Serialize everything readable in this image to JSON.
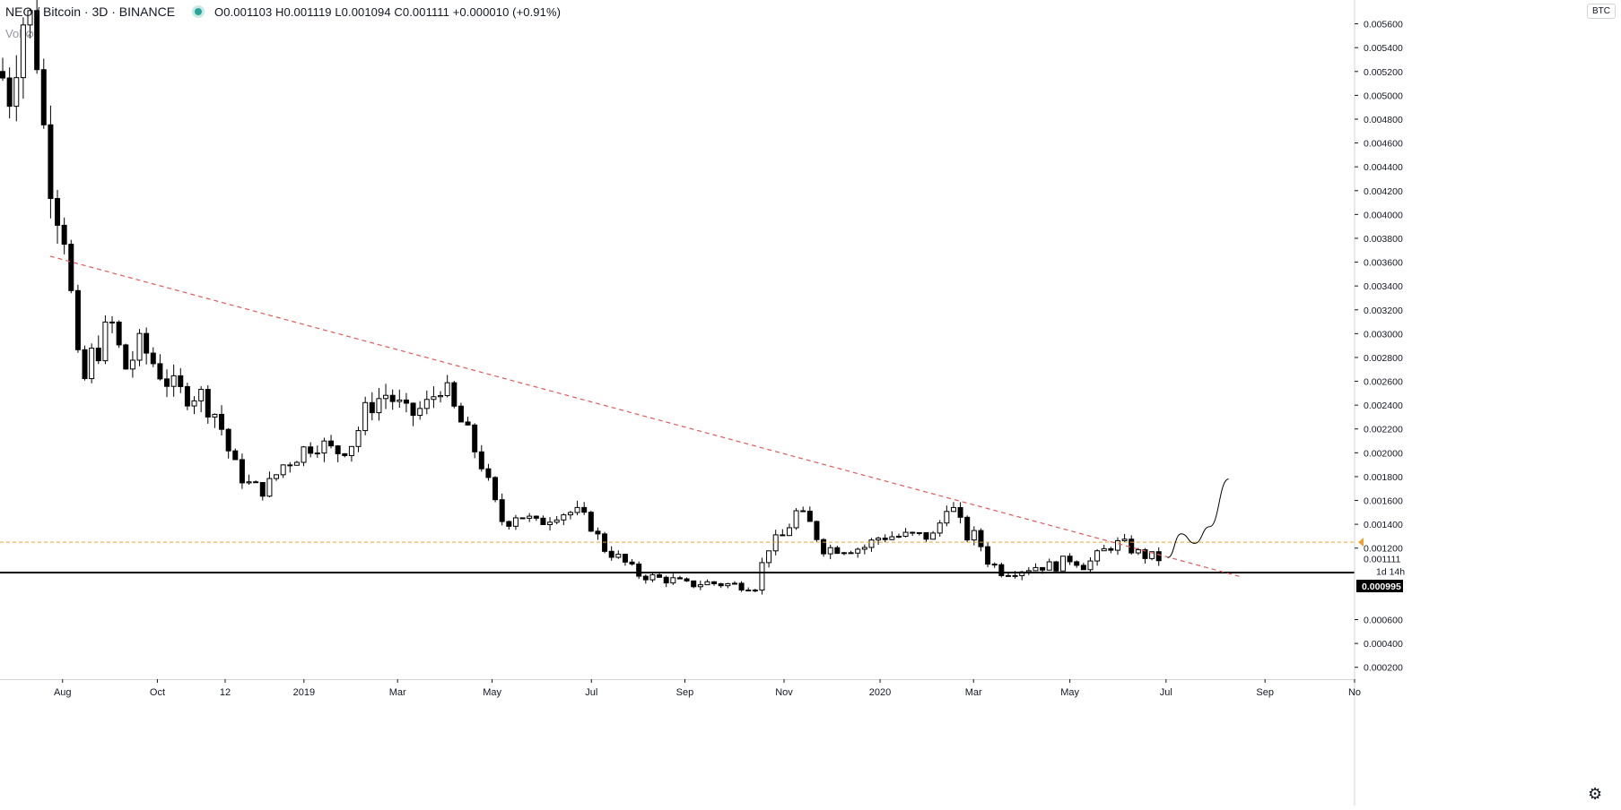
{
  "header": {
    "symbol": "NEO / Bitcoin · 3D · BINANCE",
    "ohlc": "O0.001103 H0.001119 L0.001094 C0.001111 +0.000010 (+0.91%)",
    "volume_label": "Vol"
  },
  "currency": "BTC",
  "colors": {
    "trendline": "#e05a5a",
    "level_orange": "#f0a030",
    "support": "#000000",
    "axis_text": "#131722"
  },
  "chart_data": {
    "type": "candlestick",
    "y_axis": {
      "min": 0.0001,
      "max": 0.0058,
      "ticks": [
        "0.005600",
        "0.005400",
        "0.005200",
        "0.005000",
        "0.004800",
        "0.004600",
        "0.004400",
        "0.004200",
        "0.004000",
        "0.003800",
        "0.003600",
        "0.003400",
        "0.003200",
        "0.003000",
        "0.002800",
        "0.002600",
        "0.002400",
        "0.002200",
        "0.002000",
        "0.001800",
        "0.001600",
        "0.001400",
        "0.001200",
        "0.000600",
        "0.000400",
        "0.000200"
      ],
      "tick_values": [
        0.0056,
        0.0054,
        0.0052,
        0.005,
        0.0048,
        0.0046,
        0.0044,
        0.0042,
        0.004,
        0.0038,
        0.0036,
        0.0034,
        0.0032,
        0.003,
        0.0028,
        0.0026,
        0.0024,
        0.0022,
        0.002,
        0.0018,
        0.0016,
        0.0014,
        0.0012,
        0.0006,
        0.0004,
        0.0002
      ]
    },
    "x_axis": {
      "labels": [
        "Aug",
        "Oct",
        "12",
        "2019",
        "Mar",
        "May",
        "Jul",
        "Sep",
        "Nov",
        "2020",
        "Mar",
        "May",
        "Jul",
        "Sep",
        "No"
      ],
      "positions": [
        0.0462,
        0.1162,
        0.1662,
        0.2244,
        0.2935,
        0.3633,
        0.4366,
        0.5056,
        0.5788,
        0.6497,
        0.7187,
        0.7898,
        0.8608,
        0.9339,
        1.0
      ]
    },
    "price_labels": {
      "last": "0.001111",
      "last_value": 0.001111,
      "countdown": "1d 14h",
      "support": "0.000995",
      "support_value": 0.000995,
      "orange_value": 0.00125
    },
    "trendline": [
      [
        0.037,
        0.00365
      ],
      [
        0.916,
        0.00096
      ]
    ],
    "projection": [
      [
        0.862,
        0.00112
      ],
      [
        0.872,
        0.00132
      ],
      [
        0.882,
        0.00124
      ],
      [
        0.893,
        0.00138
      ],
      [
        0.907,
        0.00178
      ]
    ],
    "anchors": [
      [
        0.0,
        0.0052
      ],
      [
        0.008,
        0.005
      ],
      [
        0.015,
        0.0056
      ],
      [
        0.021,
        0.0057
      ],
      [
        0.028,
        0.0053
      ],
      [
        0.034,
        0.0045
      ],
      [
        0.041,
        0.0041
      ],
      [
        0.049,
        0.0038
      ],
      [
        0.054,
        0.0031
      ],
      [
        0.06,
        0.0025
      ],
      [
        0.067,
        0.0028
      ],
      [
        0.074,
        0.0029
      ],
      [
        0.082,
        0.0031
      ],
      [
        0.092,
        0.0027
      ],
      [
        0.104,
        0.0029
      ],
      [
        0.117,
        0.0027
      ],
      [
        0.131,
        0.0025
      ],
      [
        0.147,
        0.0025
      ],
      [
        0.161,
        0.0023
      ],
      [
        0.172,
        0.0019
      ],
      [
        0.186,
        0.0017
      ],
      [
        0.197,
        0.0017
      ],
      [
        0.209,
        0.0019
      ],
      [
        0.221,
        0.002
      ],
      [
        0.233,
        0.0021
      ],
      [
        0.247,
        0.002
      ],
      [
        0.261,
        0.0021
      ],
      [
        0.272,
        0.0024
      ],
      [
        0.286,
        0.0025
      ],
      [
        0.301,
        0.0023
      ],
      [
        0.316,
        0.0024
      ],
      [
        0.326,
        0.0026
      ],
      [
        0.333,
        0.0024
      ],
      [
        0.343,
        0.0022
      ],
      [
        0.356,
        0.0019
      ],
      [
        0.364,
        0.0016
      ],
      [
        0.372,
        0.0014
      ],
      [
        0.382,
        0.0015
      ],
      [
        0.396,
        0.0014
      ],
      [
        0.411,
        0.0015
      ],
      [
        0.425,
        0.0015
      ],
      [
        0.436,
        0.0014
      ],
      [
        0.446,
        0.0012
      ],
      [
        0.459,
        0.0011
      ],
      [
        0.471,
        0.00098
      ],
      [
        0.484,
        0.00095
      ],
      [
        0.497,
        0.00093
      ],
      [
        0.508,
        0.00089
      ],
      [
        0.52,
        0.00091
      ],
      [
        0.532,
        0.0009
      ],
      [
        0.545,
        0.00089
      ],
      [
        0.558,
        0.00088
      ],
      [
        0.566,
        0.0012
      ],
      [
        0.578,
        0.0013
      ],
      [
        0.588,
        0.0015
      ],
      [
        0.598,
        0.0014
      ],
      [
        0.608,
        0.0012
      ],
      [
        0.622,
        0.0012
      ],
      [
        0.637,
        0.0012
      ],
      [
        0.65,
        0.0013
      ],
      [
        0.664,
        0.0013
      ],
      [
        0.679,
        0.0013
      ],
      [
        0.692,
        0.0013
      ],
      [
        0.697,
        0.0016
      ],
      [
        0.705,
        0.0015
      ],
      [
        0.713,
        0.0013
      ],
      [
        0.721,
        0.0013
      ],
      [
        0.729,
        0.0011
      ],
      [
        0.74,
        0.001
      ],
      [
        0.753,
        0.00102
      ],
      [
        0.766,
        0.00105
      ],
      [
        0.779,
        0.00105
      ],
      [
        0.791,
        0.00112
      ],
      [
        0.801,
        0.00105
      ],
      [
        0.812,
        0.00115
      ],
      [
        0.822,
        0.00124
      ],
      [
        0.832,
        0.00122
      ],
      [
        0.841,
        0.00115
      ],
      [
        0.852,
        0.00112
      ],
      [
        0.857,
        0.00111
      ]
    ]
  }
}
